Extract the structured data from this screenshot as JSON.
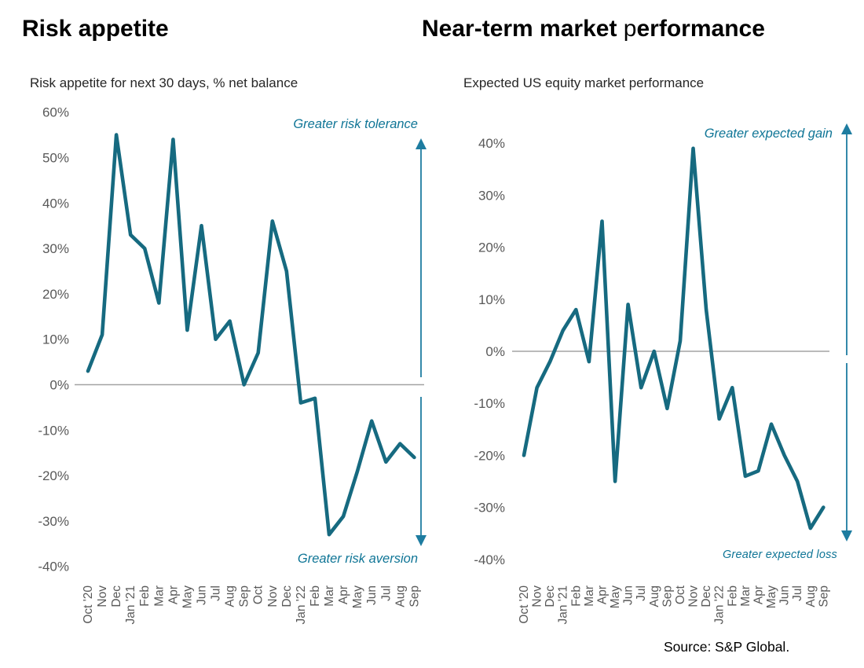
{
  "page": {
    "source": "Source: S&P Global."
  },
  "colors": {
    "line": "#166a80",
    "accent": "#0f7596",
    "arrow": "#1d7ca0",
    "tick_label": "#595959",
    "zero_line": "#a3a3a3"
  },
  "charts": [
    {
      "title": "Risk appetite",
      "subtitle": "Risk appetite for next 30 days, % net balance",
      "annotation_top": "Greater risk tolerance",
      "annotation_bottom": "Greater risk aversion"
    },
    {
      "title_parts": {
        "p1": "Near-term market ",
        "p2": "p",
        "p3": "erformance"
      },
      "subtitle": "Expected US equity market performance",
      "annotation_top": "Greater expected gain",
      "annotation_bottom": "Greater  expected loss"
    }
  ],
  "chart_data": [
    {
      "type": "line",
      "title": "Risk appetite for next 30 days, % net balance",
      "x": [
        "Oct '20",
        "Nov",
        "Dec",
        "Jan '21",
        "Feb",
        "Mar",
        "Apr",
        "May",
        "Jun",
        "Jul",
        "Aug",
        "Sep",
        "Oct",
        "Nov",
        "Dec",
        "Jan '22",
        "Feb",
        "Mar",
        "Apr",
        "May",
        "Jun",
        "Jul",
        "Aug",
        "Sep"
      ],
      "values": [
        3,
        11,
        55,
        33,
        30,
        18,
        54,
        12,
        35,
        10,
        14,
        0,
        7,
        36,
        25,
        -4,
        -3,
        -33,
        -29,
        -19,
        -8,
        -17,
        -13,
        -16
      ],
      "ylim": [
        -40,
        60
      ],
      "yticks": [
        60,
        50,
        40,
        30,
        20,
        10,
        0,
        -10,
        -20,
        -30,
        -40
      ],
      "ytick_suffix": "%",
      "grid": "zero-line-only",
      "legend": "none"
    },
    {
      "type": "line",
      "title": "Expected US equity market performance",
      "x": [
        "Oct '20",
        "Nov",
        "Dec",
        "Jan '21",
        "Feb",
        "Mar",
        "Apr",
        "May",
        "Jun",
        "Jul",
        "Aug",
        "Sep",
        "Oct",
        "Nov",
        "Dec",
        "Jan '22",
        "Feb",
        "Mar",
        "Apr",
        "May",
        "Jun",
        "Jul",
        "Aug",
        "Sep"
      ],
      "values": [
        -20,
        -7,
        -2,
        4,
        8,
        -2,
        25,
        -25,
        9,
        -7,
        0,
        -11,
        2,
        39,
        8,
        -13,
        -7,
        -24,
        -23,
        -14,
        -20,
        -25,
        -34,
        -30
      ],
      "ylim": [
        -40,
        40
      ],
      "yticks": [
        40,
        30,
        20,
        10,
        0,
        -10,
        -20,
        -30,
        -40
      ],
      "ytick_suffix": "%",
      "grid": "zero-line-only",
      "legend": "none"
    }
  ]
}
